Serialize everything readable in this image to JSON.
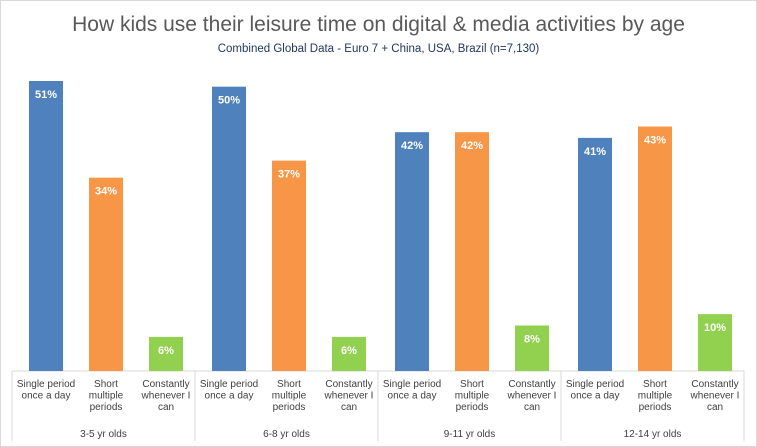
{
  "chart_data": {
    "type": "bar",
    "title": "How kids use their leisure time on digital & media activities by age",
    "subtitle": "Combined Global Data - Euro 7 + China, USA, Brazil (n=7,130)",
    "ylim": [
      0,
      55
    ],
    "grid": false,
    "groups": [
      {
        "name": "3-5 yr olds",
        "bars": [
          {
            "label": [
              "Single period",
              "once a day"
            ],
            "value": 51,
            "value_label": "51%",
            "color": "#4f81bd"
          },
          {
            "label": [
              "Short",
              "multiple",
              "periods"
            ],
            "value": 34,
            "value_label": "34%",
            "color": "#f79646"
          },
          {
            "label": [
              "Constantly",
              "whenever I",
              "can"
            ],
            "value": 6,
            "value_label": "6%",
            "color": "#92d050"
          }
        ]
      },
      {
        "name": "6-8 yr olds",
        "bars": [
          {
            "label": [
              "Single period",
              "once a day"
            ],
            "value": 50,
            "value_label": "50%",
            "color": "#4f81bd"
          },
          {
            "label": [
              "Short",
              "multiple",
              "periods"
            ],
            "value": 37,
            "value_label": "37%",
            "color": "#f79646"
          },
          {
            "label": [
              "Constantly",
              "whenever I",
              "can"
            ],
            "value": 6,
            "value_label": "6%",
            "color": "#92d050"
          }
        ]
      },
      {
        "name": "9-11 yr olds",
        "bars": [
          {
            "label": [
              "Single period",
              "once a day"
            ],
            "value": 42,
            "value_label": "42%",
            "color": "#4f81bd"
          },
          {
            "label": [
              "Short",
              "multiple",
              "periods"
            ],
            "value": 42,
            "value_label": "42%",
            "color": "#f79646"
          },
          {
            "label": [
              "Constantly",
              "whenever I",
              "can"
            ],
            "value": 8,
            "value_label": "8%",
            "color": "#92d050"
          }
        ]
      },
      {
        "name": "12-14 yr olds",
        "bars": [
          {
            "label": [
              "Single period",
              "once a day"
            ],
            "value": 41,
            "value_label": "41%",
            "color": "#4f81bd"
          },
          {
            "label": [
              "Short",
              "multiple",
              "periods"
            ],
            "value": 43,
            "value_label": "43%",
            "color": "#f79646"
          },
          {
            "label": [
              "Constantly",
              "whenever I",
              "can"
            ],
            "value": 10,
            "value_label": "10%",
            "color": "#92d050"
          }
        ]
      }
    ]
  }
}
